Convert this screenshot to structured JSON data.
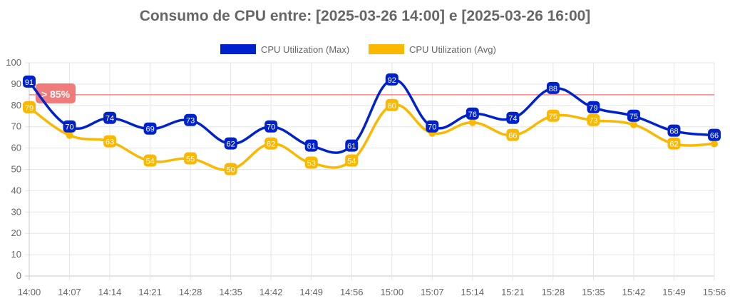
{
  "chart_data": {
    "type": "line",
    "title": "Consumo de CPU entre: [2025-03-26 14:00] e [2025-03-26 16:00]",
    "categories": [
      "14:00",
      "14:07",
      "14:14",
      "14:21",
      "14:28",
      "14:35",
      "14:42",
      "14:49",
      "14:56",
      "15:00",
      "15:07",
      "15:14",
      "15:21",
      "15:28",
      "15:35",
      "15:42",
      "15:49",
      "15:56"
    ],
    "series": [
      {
        "name": "CPU Utilization (Max)",
        "color": "#0022cc",
        "values": [
          91,
          70,
          74,
          69,
          73,
          62,
          70,
          61,
          61,
          92,
          70,
          76,
          74,
          88,
          79,
          75,
          68,
          66
        ],
        "labeled": [
          true,
          true,
          true,
          true,
          true,
          true,
          true,
          true,
          true,
          true,
          true,
          true,
          true,
          true,
          true,
          true,
          true,
          true
        ]
      },
      {
        "name": "CPU Utilization (Avg)",
        "color": "#fbb800",
        "values": [
          79,
          66,
          63,
          54,
          55,
          50,
          62,
          53,
          54,
          80,
          67,
          72,
          66,
          75,
          73,
          71,
          62,
          62
        ],
        "labeled": [
          true,
          false,
          true,
          true,
          true,
          true,
          true,
          true,
          true,
          true,
          false,
          false,
          true,
          true,
          true,
          false,
          true,
          false
        ]
      }
    ],
    "ylim": [
      0,
      100
    ],
    "yticks": [
      0,
      10,
      20,
      30,
      40,
      50,
      60,
      70,
      80,
      90,
      100
    ],
    "threshold": {
      "value": 85,
      "label": "> 85%",
      "color": "#f07070"
    },
    "grid": true,
    "legend": "top"
  }
}
